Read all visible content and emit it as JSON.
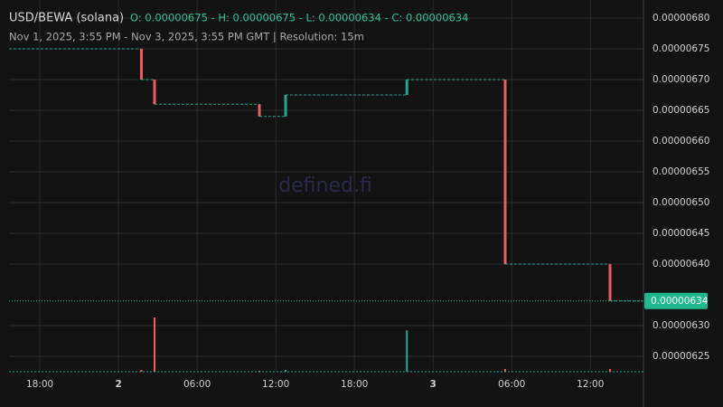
{
  "chart_data": {
    "type": "candlestick",
    "title": "USD/BEWA (solana)",
    "ohlc_text": "O: 0.00000675 - H: 0.00000675 - L: 0.00000634 - C: 0.00000634",
    "subtitle": "Nov 1, 2025, 3:55 PM - Nov 3, 2025, 3:55 PM GMT   |   Resolution: 15m",
    "watermark": "defined.fi",
    "up_color": "#26a68e",
    "down_color": "#ef5a5f",
    "grid": true,
    "xlim": [
      15.65,
      64.05
    ],
    "xticks": [
      {
        "value": 18,
        "label": "18:00"
      },
      {
        "value": 24,
        "label": "2"
      },
      {
        "value": 30,
        "label": "06:00"
      },
      {
        "value": 36,
        "label": "12:00"
      },
      {
        "value": 42,
        "label": "18:00"
      },
      {
        "value": 48,
        "label": "3"
      },
      {
        "value": 54,
        "label": "06:00"
      },
      {
        "value": 60,
        "label": "12:00"
      }
    ],
    "ylim": [
      6.2235e-06,
      6.8294e-06
    ],
    "yticks": [
      {
        "value": 6.8e-06,
        "label": "0.00000680"
      },
      {
        "value": 6.75e-06,
        "label": "0.00000675"
      },
      {
        "value": 6.7e-06,
        "label": "0.00000670"
      },
      {
        "value": 6.65e-06,
        "label": "0.00000665"
      },
      {
        "value": 6.6e-06,
        "label": "0.00000660"
      },
      {
        "value": 6.55e-06,
        "label": "0.00000655"
      },
      {
        "value": 6.5e-06,
        "label": "0.00000650"
      },
      {
        "value": 6.45e-06,
        "label": "0.00000645"
      },
      {
        "value": 6.4e-06,
        "label": "0.00000640"
      },
      {
        "value": 6.3e-06,
        "label": "0.00000630"
      },
      {
        "value": 6.25e-06,
        "label": "0.00000625"
      }
    ],
    "x": [
      25.75,
      26.75,
      34.75,
      36.75,
      46,
      53.5,
      61.5
    ],
    "open": [
      6.75e-06,
      6.7e-06,
      6.66e-06,
      6.64e-06,
      6.675e-06,
      6.7e-06,
      6.4e-06
    ],
    "high": [
      6.75e-06,
      6.7e-06,
      6.66e-06,
      6.675e-06,
      6.7e-06,
      6.7e-06,
      6.4e-06
    ],
    "low": [
      6.7e-06,
      6.66e-06,
      6.64e-06,
      6.64e-06,
      6.675e-06,
      6.4e-06,
      6.34e-06
    ],
    "close": [
      6.7e-06,
      6.66e-06,
      6.64e-06,
      6.675e-06,
      6.7e-06,
      6.4e-06,
      6.34e-06
    ],
    "volume": [
      2,
      59,
      1,
      2,
      45,
      3,
      3
    ],
    "last_price": 6.34e-06
  }
}
